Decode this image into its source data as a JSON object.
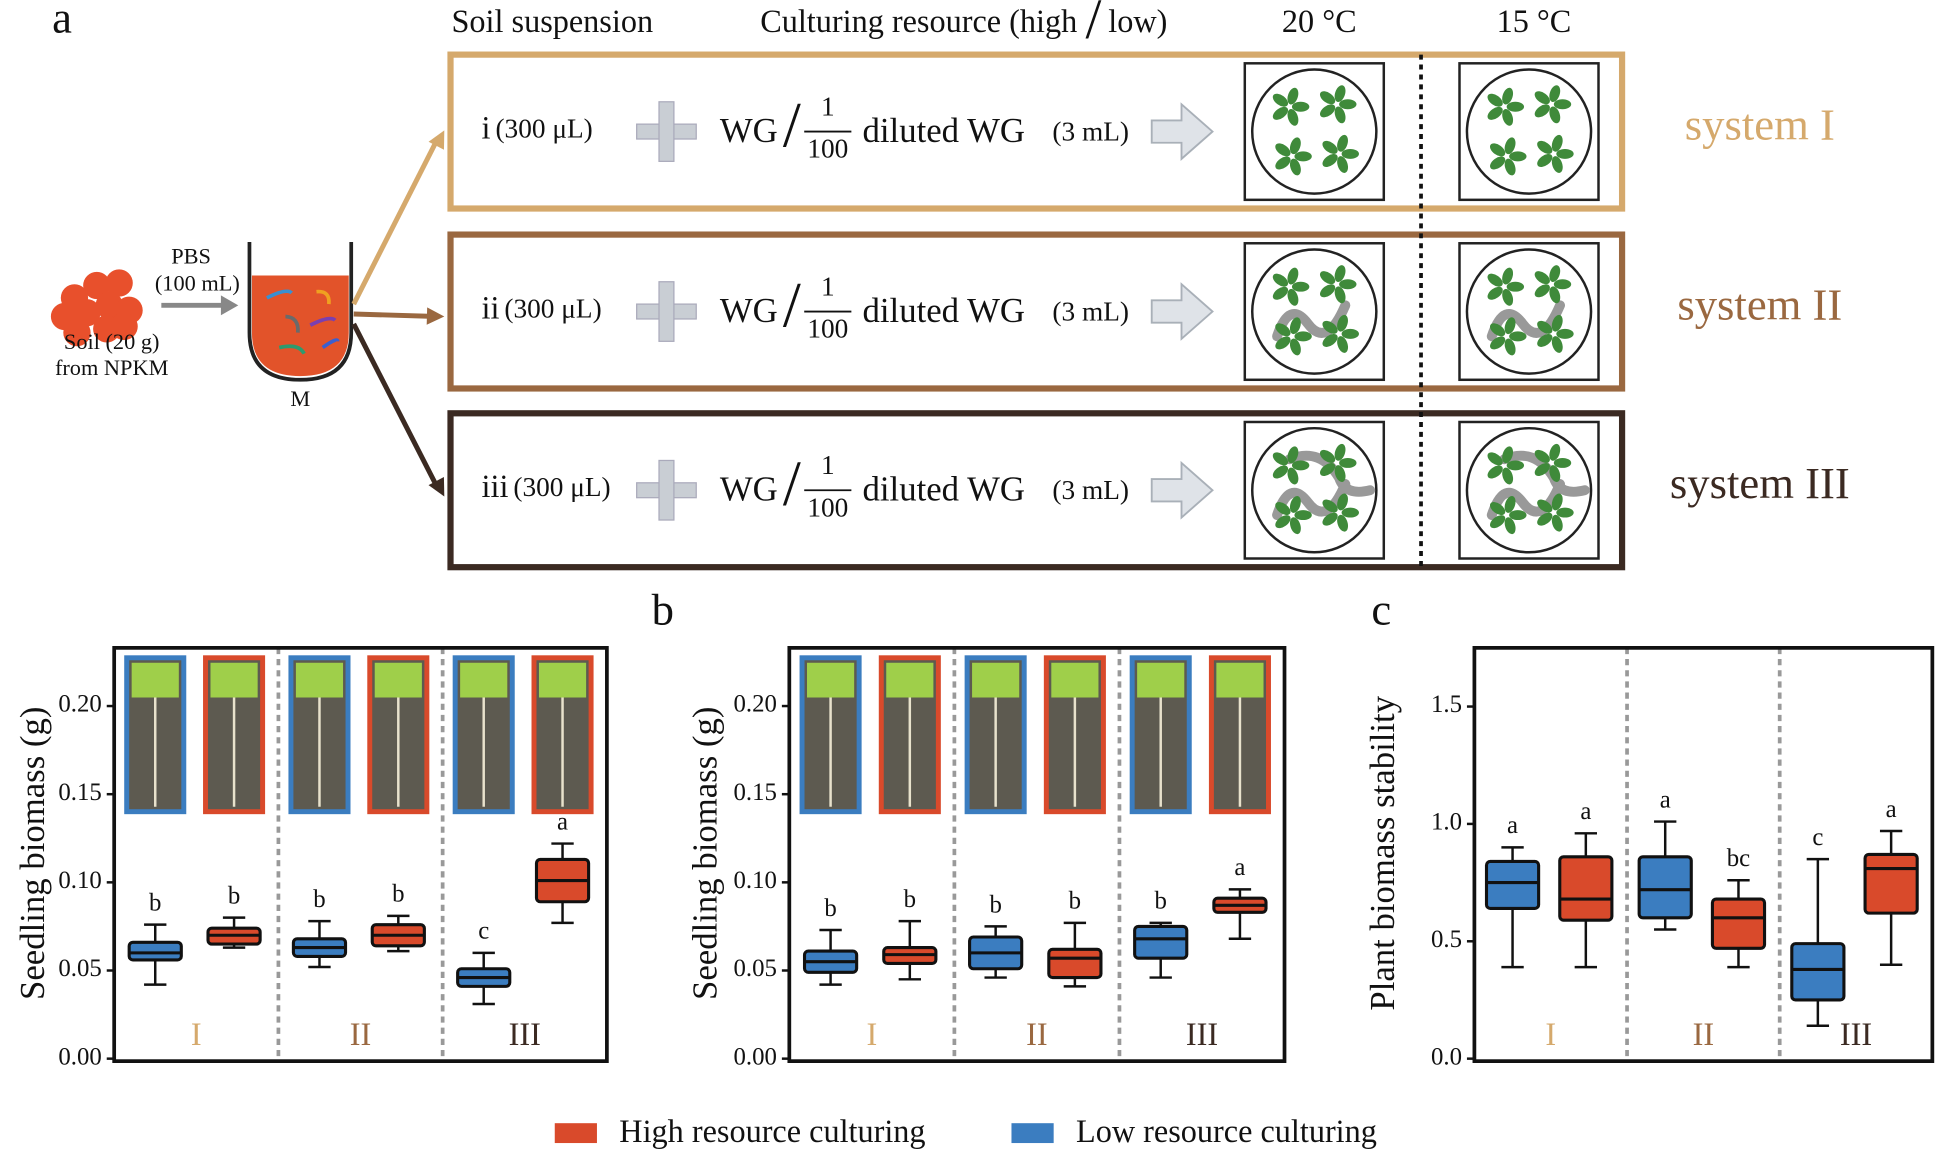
{
  "panel_a": {
    "label": "a",
    "headers": {
      "soil_suspension": "Soil suspension",
      "culturing_resource": "Culturing resource (high",
      "slash": "/",
      "low": "low)",
      "temp_1": "20 °C",
      "temp_2": "15 °C"
    },
    "soil": {
      "pbs": "PBS",
      "pbs_volume": "(100 mL)",
      "soil_amount": "Soil (20 g)",
      "soil_source": "from NPKM",
      "mixture": "M"
    },
    "rows": [
      {
        "inoculum": "i",
        "volume": "(300 μL)",
        "medium": "WG",
        "slash": "/",
        "fraction_numerator": "1",
        "fraction_denominator": "100",
        "diluted": "diluted WG",
        "medium_volume": "(3 mL)",
        "system": "system I",
        "color": "#d5a96c"
      },
      {
        "inoculum": "ii",
        "volume": "(300 μL)",
        "medium": "WG",
        "slash": "/",
        "fraction_numerator": "1",
        "fraction_denominator": "100",
        "diluted": "diluted WG",
        "medium_volume": "(3 mL)",
        "system": "system II",
        "color": "#9a6840"
      },
      {
        "inoculum": "iii",
        "volume": "(300 μL)",
        "medium": "WG",
        "slash": "/",
        "fraction_numerator": "1",
        "fraction_denominator": "100",
        "diluted": "diluted WG",
        "medium_volume": "(3 mL)",
        "system": "system III",
        "color": "#3b2a22"
      }
    ]
  },
  "legend": [
    {
      "name": "High resource culturing",
      "color": "#d94a2b"
    },
    {
      "name": "Low resource culturing",
      "color": "#3b7dc0"
    }
  ],
  "chart_data": [
    {
      "type": "box",
      "y_label": "Seedling biomass (g)",
      "categories": [
        "I",
        "II",
        "III"
      ],
      "category_colors": [
        "#d5a96c",
        "#9a6840",
        "#3b2a22"
      ],
      "ylim": [
        0,
        0.233
      ],
      "yticks": [
        {
          "value": 0,
          "label": "0.00"
        },
        {
          "value": 0.05,
          "label": "0.05"
        },
        {
          "value": 0.1,
          "label": "0.10"
        },
        {
          "value": 0.15,
          "label": "0.15"
        },
        {
          "value": 0.2,
          "label": "0.20"
        }
      ],
      "series": [
        {
          "boxes": [
            {
              "min": 0.063,
              "q1": 0.065,
              "median": 0.07,
              "q3": 0.074,
              "max": 0.08,
              "letter": "b"
            },
            {
              "min": 0.061,
              "q1": 0.064,
              "median": 0.07,
              "q3": 0.076,
              "max": 0.081,
              "letter": "b"
            },
            {
              "min": 0.077,
              "q1": 0.089,
              "median": 0.101,
              "q3": 0.113,
              "max": 0.122,
              "letter": "a"
            }
          ]
        },
        {
          "boxes": [
            {
              "min": 0.042,
              "q1": 0.056,
              "median": 0.06,
              "q3": 0.066,
              "max": 0.076,
              "letter": "b"
            },
            {
              "min": 0.052,
              "q1": 0.058,
              "median": 0.063,
              "q3": 0.068,
              "max": 0.078,
              "letter": "b"
            },
            {
              "min": 0.031,
              "q1": 0.041,
              "median": 0.046,
              "q3": 0.051,
              "max": 0.06,
              "letter": "c"
            }
          ]
        }
      ]
    },
    {
      "type": "box",
      "label": "b",
      "y_label": "Seedling biomass (g)",
      "categories": [
        "I",
        "II",
        "III"
      ],
      "category_colors": [
        "#d5a96c",
        "#9a6840",
        "#3b2a22"
      ],
      "ylim": [
        0,
        0.233
      ],
      "yticks": [
        {
          "value": 0,
          "label": "0.00"
        },
        {
          "value": 0.05,
          "label": "0.05"
        },
        {
          "value": 0.1,
          "label": "0.10"
        },
        {
          "value": 0.15,
          "label": "0.15"
        },
        {
          "value": 0.2,
          "label": "0.20"
        }
      ],
      "series": [
        {
          "boxes": [
            {
              "min": 0.045,
              "q1": 0.054,
              "median": 0.059,
              "q3": 0.063,
              "max": 0.078,
              "letter": "b"
            },
            {
              "min": 0.041,
              "q1": 0.046,
              "median": 0.057,
              "q3": 0.062,
              "max": 0.077,
              "letter": "b"
            },
            {
              "min": 0.068,
              "q1": 0.083,
              "median": 0.087,
              "q3": 0.091,
              "max": 0.096,
              "letter": "a"
            }
          ]
        },
        {
          "boxes": [
            {
              "min": 0.042,
              "q1": 0.049,
              "median": 0.055,
              "q3": 0.061,
              "max": 0.073,
              "letter": "b"
            },
            {
              "min": 0.046,
              "q1": 0.051,
              "median": 0.06,
              "q3": 0.069,
              "max": 0.075,
              "letter": "b"
            },
            {
              "min": 0.046,
              "q1": 0.057,
              "median": 0.068,
              "q3": 0.075,
              "max": 0.077,
              "letter": "b"
            }
          ]
        }
      ]
    },
    {
      "type": "box",
      "label": "c",
      "y_label": "Plant biomass stability",
      "categories": [
        "I",
        "II",
        "III"
      ],
      "category_colors": [
        "#d5a96c",
        "#9a6840",
        "#3b2a22"
      ],
      "ylim": [
        0,
        1.75
      ],
      "yticks": [
        {
          "value": 0,
          "label": "0.0"
        },
        {
          "value": 0.5,
          "label": "0.5"
        },
        {
          "value": 1,
          "label": "1.0"
        },
        {
          "value": 1.5,
          "label": "1.5"
        }
      ],
      "series": [
        {
          "boxes": [
            {
              "min": 0.39,
              "q1": 0.59,
              "median": 0.68,
              "q3": 0.86,
              "max": 0.96,
              "letter": "a"
            },
            {
              "min": 0.39,
              "q1": 0.47,
              "median": 0.6,
              "q3": 0.68,
              "max": 0.76,
              "letter": "bc"
            },
            {
              "min": 0.4,
              "q1": 0.62,
              "median": 0.81,
              "q3": 0.87,
              "max": 0.97,
              "letter": "a"
            }
          ]
        },
        {
          "boxes": [
            {
              "min": 0.39,
              "q1": 0.64,
              "median": 0.75,
              "q3": 0.84,
              "max": 0.9,
              "letter": "a"
            },
            {
              "min": 0.55,
              "q1": 0.6,
              "median": 0.72,
              "q3": 0.86,
              "max": 1.01,
              "letter": "a"
            },
            {
              "min": 0.14,
              "q1": 0.25,
              "median": 0.38,
              "q3": 0.49,
              "max": 0.85,
              "letter": "c"
            }
          ]
        }
      ]
    }
  ]
}
